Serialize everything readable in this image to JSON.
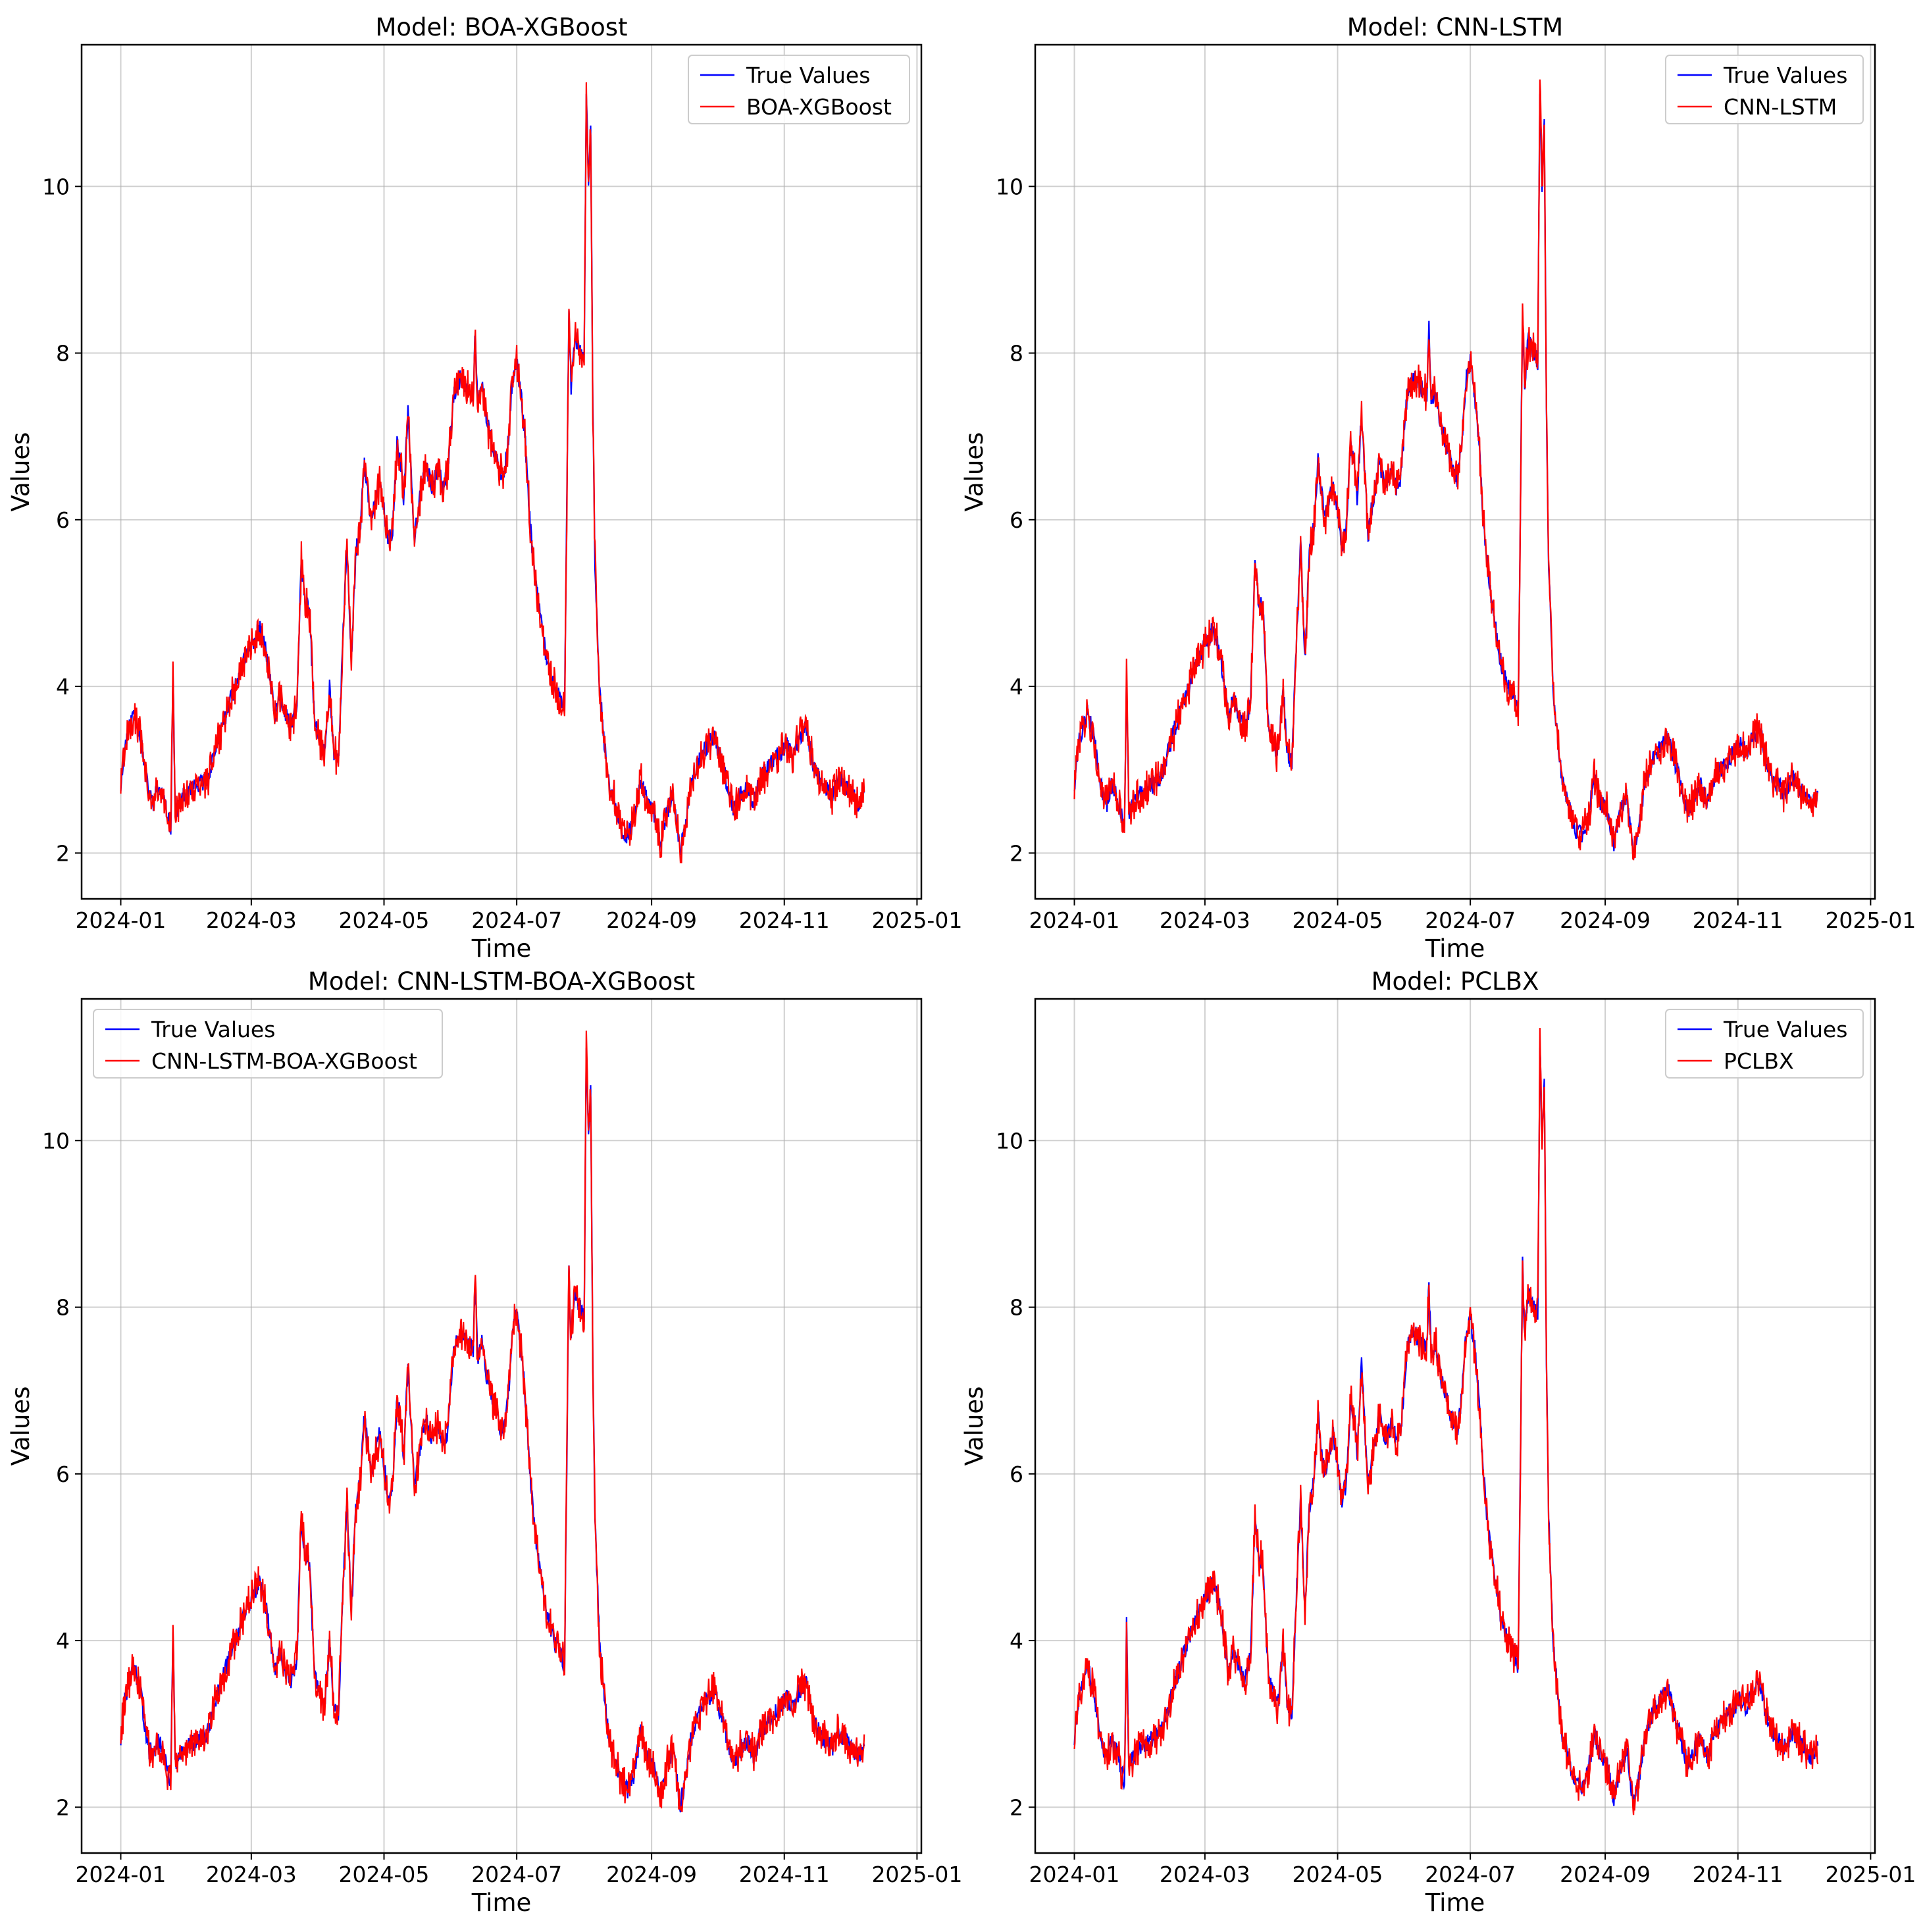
{
  "colors": {
    "true_series": "#0000ff",
    "pred_series": "#ff0000",
    "grid": "#b0b0b0",
    "axes": "#000000"
  },
  "chart_data": [
    {
      "type": "line",
      "title": "Model: BOA-XGBoost",
      "xlabel": "Time",
      "ylabel": "Values",
      "xlim": [
        "2023-12-14",
        "2025-01-03"
      ],
      "ylim": [
        1.45,
        11.7
      ],
      "x_ticks": [
        "2024-01-01",
        "2024-03-01",
        "2024-05-01",
        "2024-07-01",
        "2024-09-01",
        "2024-11-01",
        "2025-01-01"
      ],
      "x_tick_labels": [
        "2024-01",
        "2024-03",
        "2024-05",
        "2024-07",
        "2024-09",
        "2024-11",
        "2025-01"
      ],
      "y_ticks": [
        2,
        4,
        6,
        8,
        10
      ],
      "y_tick_labels": [
        "2",
        "4",
        "6",
        "8",
        "10"
      ],
      "grid": true,
      "legend": "top-right",
      "series": [
        {
          "name": "True Values"
        },
        {
          "name": "BOA-XGBoost"
        }
      ]
    },
    {
      "type": "line",
      "title": "Model: CNN-LSTM",
      "xlabel": "Time",
      "ylabel": "Values",
      "xlim": [
        "2023-12-14",
        "2025-01-03"
      ],
      "ylim": [
        1.45,
        11.7
      ],
      "x_ticks": [
        "2024-01-01",
        "2024-03-01",
        "2024-05-01",
        "2024-07-01",
        "2024-09-01",
        "2024-11-01",
        "2025-01-01"
      ],
      "x_tick_labels": [
        "2024-01",
        "2024-03",
        "2024-05",
        "2024-07",
        "2024-09",
        "2024-11",
        "2025-01"
      ],
      "y_ticks": [
        2,
        4,
        6,
        8,
        10
      ],
      "y_tick_labels": [
        "2",
        "4",
        "6",
        "8",
        "10"
      ],
      "grid": true,
      "legend": "top-right",
      "series": [
        {
          "name": "True Values"
        },
        {
          "name": "CNN-LSTM"
        }
      ]
    },
    {
      "type": "line",
      "title": "Model: CNN-LSTM-BOA-XGBoost",
      "xlabel": "Time",
      "ylabel": "Values",
      "xlim": [
        "2023-12-14",
        "2025-01-03"
      ],
      "ylim": [
        1.45,
        11.7
      ],
      "x_ticks": [
        "2024-01-01",
        "2024-03-01",
        "2024-05-01",
        "2024-07-01",
        "2024-09-01",
        "2024-11-01",
        "2025-01-01"
      ],
      "x_tick_labels": [
        "2024-01",
        "2024-03",
        "2024-05",
        "2024-07",
        "2024-09",
        "2024-11",
        "2025-01"
      ],
      "y_ticks": [
        2,
        4,
        6,
        8,
        10
      ],
      "y_tick_labels": [
        "2",
        "4",
        "6",
        "8",
        "10"
      ],
      "grid": true,
      "legend": "top-left",
      "series": [
        {
          "name": "True Values"
        },
        {
          "name": "CNN-LSTM-BOA-XGBoost"
        }
      ]
    },
    {
      "type": "line",
      "title": "Model: PCLBX",
      "xlabel": "Time",
      "ylabel": "Values",
      "xlim": [
        "2023-12-14",
        "2025-01-03"
      ],
      "ylim": [
        1.45,
        11.7
      ],
      "x_ticks": [
        "2024-01-01",
        "2024-03-01",
        "2024-05-01",
        "2024-07-01",
        "2024-09-01",
        "2024-11-01",
        "2025-01-01"
      ],
      "x_tick_labels": [
        "2024-01",
        "2024-03",
        "2024-05",
        "2024-07",
        "2024-09",
        "2024-11",
        "2025-01"
      ],
      "y_ticks": [
        2,
        4,
        6,
        8,
        10
      ],
      "y_tick_labels": [
        "2",
        "4",
        "6",
        "8",
        "10"
      ],
      "grid": true,
      "legend": "top-right",
      "series": [
        {
          "name": "True Values"
        },
        {
          "name": "PCLBX"
        }
      ]
    }
  ],
  "shared_series": {
    "x": [
      "2024-01-01",
      "2024-01-02",
      "2024-01-03",
      "2024-01-05",
      "2024-01-07",
      "2024-01-08",
      "2024-01-10",
      "2024-01-12",
      "2024-01-14",
      "2024-01-16",
      "2024-01-18",
      "2024-01-20",
      "2024-01-22",
      "2024-01-24",
      "2024-01-25",
      "2024-01-26",
      "2024-01-28",
      "2024-01-31",
      "2024-02-05",
      "2024-02-10",
      "2024-02-15",
      "2024-02-20",
      "2024-02-25",
      "2024-03-01",
      "2024-03-05",
      "2024-03-08",
      "2024-03-10",
      "2024-03-12",
      "2024-03-14",
      "2024-03-16",
      "2024-03-19",
      "2024-03-22",
      "2024-03-24",
      "2024-03-26",
      "2024-03-27",
      "2024-03-28",
      "2024-03-30",
      "2024-04-01",
      "2024-04-03",
      "2024-04-04",
      "2024-04-06",
      "2024-04-08",
      "2024-04-10",
      "2024-04-12",
      "2024-04-14",
      "2024-04-16",
      "2024-04-18",
      "2024-04-20",
      "2024-04-22",
      "2024-04-25",
      "2024-04-27",
      "2024-04-29",
      "2024-05-01",
      "2024-05-03",
      "2024-05-05",
      "2024-05-07",
      "2024-05-09",
      "2024-05-10",
      "2024-05-12",
      "2024-05-15",
      "2024-05-17",
      "2024-05-19",
      "2024-05-20",
      "2024-05-23",
      "2024-05-26",
      "2024-05-28",
      "2024-05-30",
      "2024-06-02",
      "2024-06-05",
      "2024-06-08",
      "2024-06-11",
      "2024-06-12",
      "2024-06-13",
      "2024-06-15",
      "2024-06-17",
      "2024-06-19",
      "2024-06-21",
      "2024-06-23",
      "2024-06-25",
      "2024-06-27",
      "2024-06-29",
      "2024-07-01",
      "2024-07-03",
      "2024-07-05",
      "2024-07-07",
      "2024-07-09",
      "2024-07-12",
      "2024-07-15",
      "2024-07-18",
      "2024-07-20",
      "2024-07-23",
      "2024-07-25",
      "2024-07-26",
      "2024-07-27",
      "2024-07-28",
      "2024-07-30",
      "2024-08-01",
      "2024-08-02",
      "2024-08-03",
      "2024-08-04",
      "2024-08-05",
      "2024-08-06",
      "2024-08-08",
      "2024-08-10",
      "2024-08-12",
      "2024-08-15",
      "2024-08-18",
      "2024-08-21",
      "2024-08-24",
      "2024-08-27",
      "2024-08-30",
      "2024-09-02",
      "2024-09-05",
      "2024-09-08",
      "2024-09-11",
      "2024-09-14",
      "2024-09-17",
      "2024-09-19",
      "2024-09-21",
      "2024-09-24",
      "2024-09-27",
      "2024-09-30",
      "2024-10-03",
      "2024-10-06",
      "2024-10-09",
      "2024-10-12",
      "2024-10-15",
      "2024-10-18",
      "2024-10-21",
      "2024-10-24",
      "2024-10-27",
      "2024-10-30",
      "2024-11-02",
      "2024-11-05",
      "2024-11-08",
      "2024-11-11",
      "2024-11-14",
      "2024-11-17",
      "2024-11-20",
      "2024-11-23",
      "2024-11-26",
      "2024-11-29",
      "2024-12-02",
      "2024-12-05",
      "2024-12-08",
      "2024-12-11",
      "2024-12-14",
      "2024-12-17",
      "2024-12-20"
    ],
    "true_values": [
      2.8,
      3.1,
      3.3,
      3.5,
      3.7,
      3.6,
      3.4,
      3.0,
      2.7,
      2.6,
      2.8,
      2.7,
      2.5,
      2.3,
      4.2,
      2.5,
      2.6,
      2.7,
      2.8,
      2.9,
      3.4,
      3.8,
      4.2,
      4.5,
      4.7,
      4.4,
      4.0,
      3.6,
      3.9,
      3.7,
      3.5,
      3.8,
      5.5,
      4.9,
      5.0,
      4.8,
      3.6,
      3.4,
      3.2,
      3.3,
      4.0,
      3.2,
      3.1,
      4.5,
      5.7,
      4.3,
      5.6,
      5.9,
      6.7,
      6.0,
      6.2,
      6.5,
      6.1,
      5.7,
      5.9,
      6.9,
      6.6,
      6.2,
      7.3,
      5.8,
      6.2,
      6.5,
      6.7,
      6.4,
      6.6,
      6.4,
      6.5,
      7.5,
      7.7,
      7.6,
      7.5,
      8.3,
      7.4,
      7.6,
      7.2,
      7.0,
      6.8,
      6.6,
      6.5,
      6.9,
      7.7,
      7.9,
      7.5,
      6.9,
      6.0,
      5.4,
      4.8,
      4.3,
      4.0,
      3.9,
      3.7,
      8.5,
      7.6,
      8.0,
      8.2,
      8.0,
      7.9,
      11.2,
      10.0,
      10.7,
      7.3,
      5.5,
      4.0,
      3.4,
      2.9,
      2.6,
      2.3,
      2.2,
      2.4,
      2.9,
      2.6,
      2.5,
      2.1,
      2.5,
      2.7,
      2.0,
      2.4,
      2.8,
      3.0,
      3.2,
      3.3,
      3.4,
      3.1,
      2.8,
      2.5,
      2.7,
      2.8,
      2.6,
      2.9,
      3.0,
      3.1,
      3.2,
      3.3,
      3.2,
      3.4,
      3.5,
      3.1,
      2.9,
      2.8,
      2.7,
      2.9,
      2.8,
      2.7,
      2.6,
      2.7
    ]
  }
}
